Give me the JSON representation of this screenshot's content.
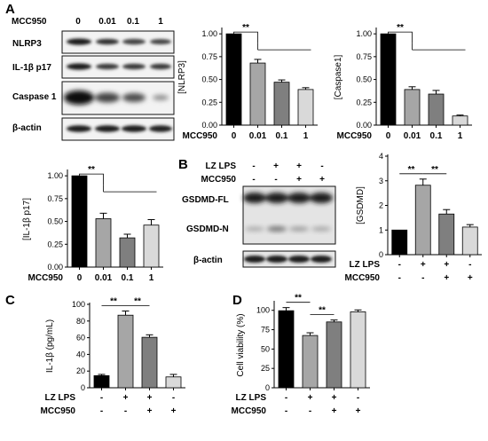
{
  "panels": {
    "A": "A",
    "B": "B",
    "C": "C",
    "D": "D"
  },
  "blot_A": {
    "header_label": "MCC950",
    "doses": [
      "0",
      "0.01",
      "0.1",
      "1"
    ],
    "rows": [
      "NLRP3",
      "IL-1β p17",
      "Caspase 1",
      "β-actin"
    ]
  },
  "blot_B": {
    "treatments": [
      {
        "name": "LZ LPS",
        "signs": [
          "-",
          "+",
          "+",
          "-"
        ]
      },
      {
        "name": "MCC950",
        "signs": [
          "-",
          "-",
          "+",
          "+"
        ]
      }
    ],
    "rows": [
      "GSDMD-FL",
      "GSDMD-N",
      "β-actin"
    ]
  },
  "chart_data": [
    {
      "id": "nlrp3",
      "type": "bar",
      "ylabel": "[NLRP3]",
      "ylim": [
        0,
        1.05
      ],
      "yticks": [
        "0.00",
        "0.25",
        "0.50",
        "0.75",
        "1.00"
      ],
      "ytick_values": [
        0,
        0.25,
        0.5,
        0.75,
        1.0
      ],
      "values": [
        1.0,
        0.68,
        0.47,
        0.39
      ],
      "errors": [
        0,
        0.04,
        0.025,
        0.02
      ],
      "colors": [
        "#000000",
        "#a6a6a6",
        "#7f7f7f",
        "#d9d9d9"
      ],
      "group_label": "MCC950",
      "tick_labels": [
        "0",
        "0.01",
        "0.1",
        "1"
      ],
      "significance": [
        {
          "label": "**",
          "from": 0,
          "to": [
            1,
            2,
            3
          ]
        }
      ]
    },
    {
      "id": "caspase1",
      "type": "bar",
      "ylabel": "[Caspase1]",
      "ylim": [
        0,
        1.05
      ],
      "yticks": [
        "0.00",
        "0.25",
        "0.50",
        "0.75",
        "1.00"
      ],
      "ytick_values": [
        0,
        0.25,
        0.5,
        0.75,
        1.0
      ],
      "values": [
        1.0,
        0.39,
        0.34,
        0.1
      ],
      "errors": [
        0,
        0.03,
        0.04,
        0.01
      ],
      "colors": [
        "#000000",
        "#a6a6a6",
        "#7f7f7f",
        "#d9d9d9"
      ],
      "group_label": "MCC950",
      "tick_labels": [
        "0",
        "0.01",
        "0.1",
        "1"
      ],
      "significance": [
        {
          "label": "**",
          "from": 0,
          "to": [
            1,
            2,
            3
          ]
        }
      ]
    },
    {
      "id": "il1b_p17",
      "type": "bar",
      "ylabel": "[IL-1β p17]",
      "ylim": [
        0,
        1.05
      ],
      "yticks": [
        "0.00",
        "0.25",
        "0.50",
        "0.75",
        "1.00"
      ],
      "ytick_values": [
        0,
        0.25,
        0.5,
        0.75,
        1.0
      ],
      "values": [
        1.0,
        0.53,
        0.32,
        0.46
      ],
      "errors": [
        0,
        0.06,
        0.04,
        0.06
      ],
      "colors": [
        "#000000",
        "#a6a6a6",
        "#7f7f7f",
        "#d9d9d9"
      ],
      "group_label": "MCC950",
      "tick_labels": [
        "0",
        "0.01",
        "0.1",
        "1"
      ],
      "significance": [
        {
          "label": "**",
          "from": 0,
          "to": [
            1,
            2,
            3
          ]
        }
      ]
    },
    {
      "id": "gsdmd",
      "type": "bar",
      "ylabel": "[GSDMD]",
      "ylim": [
        0,
        4
      ],
      "yticks": [
        "0",
        "1",
        "2",
        "3",
        "4"
      ],
      "ytick_values": [
        0,
        1,
        2,
        3,
        4
      ],
      "values": [
        1.0,
        2.82,
        1.65,
        1.12
      ],
      "errors": [
        0,
        0.25,
        0.18,
        0.1
      ],
      "colors": [
        "#000000",
        "#a6a6a6",
        "#7f7f7f",
        "#d9d9d9"
      ],
      "treatments": [
        {
          "name": "LZ LPS",
          "signs": [
            "-",
            "+",
            "+",
            "-"
          ]
        },
        {
          "name": "MCC950",
          "signs": [
            "-",
            "-",
            "+",
            "+"
          ]
        }
      ],
      "significance": [
        {
          "label": "**",
          "from": 0,
          "to": [
            1
          ]
        },
        {
          "label": "**",
          "from": 1,
          "to": [
            2
          ]
        }
      ]
    },
    {
      "id": "il1b_elisa",
      "type": "bar",
      "ylabel": "IL-1β (pg/mL)",
      "ylim": [
        0,
        100
      ],
      "yticks": [
        "0",
        "20",
        "40",
        "60",
        "80",
        "100"
      ],
      "ytick_values": [
        0,
        20,
        40,
        60,
        80,
        100
      ],
      "values": [
        14.5,
        87,
        60.5,
        13
      ],
      "errors": [
        1.5,
        5,
        3,
        3
      ],
      "colors": [
        "#000000",
        "#a6a6a6",
        "#7f7f7f",
        "#d9d9d9"
      ],
      "treatments": [
        {
          "name": "LZ LPS",
          "signs": [
            "-",
            "+",
            "+",
            "-"
          ]
        },
        {
          "name": "MCC950",
          "signs": [
            "-",
            "-",
            "+",
            "+"
          ]
        }
      ],
      "significance": [
        {
          "label": "**",
          "from": 0,
          "to": [
            1
          ]
        },
        {
          "label": "**",
          "from": 1,
          "to": [
            2
          ]
        }
      ]
    },
    {
      "id": "viability",
      "type": "bar",
      "ylabel": "Cell viability (%)",
      "ylim": [
        0,
        110
      ],
      "yticks": [
        "0",
        "25",
        "50",
        "75",
        "100"
      ],
      "ytick_values": [
        0,
        25,
        50,
        75,
        100
      ],
      "values": [
        99.5,
        67.5,
        85,
        98
      ],
      "errors": [
        4,
        3.5,
        2.5,
        2.5
      ],
      "colors": [
        "#000000",
        "#a6a6a6",
        "#7f7f7f",
        "#d9d9d9"
      ],
      "treatments": [
        {
          "name": "LZ LPS",
          "signs": [
            "-",
            "+",
            "+",
            "-"
          ]
        },
        {
          "name": "MCC950",
          "signs": [
            "-",
            "-",
            "+",
            "+"
          ]
        }
      ],
      "significance": [
        {
          "label": "**",
          "from": 0,
          "to": [
            1
          ]
        },
        {
          "label": "**",
          "from": 1,
          "to": [
            2
          ]
        }
      ]
    }
  ]
}
